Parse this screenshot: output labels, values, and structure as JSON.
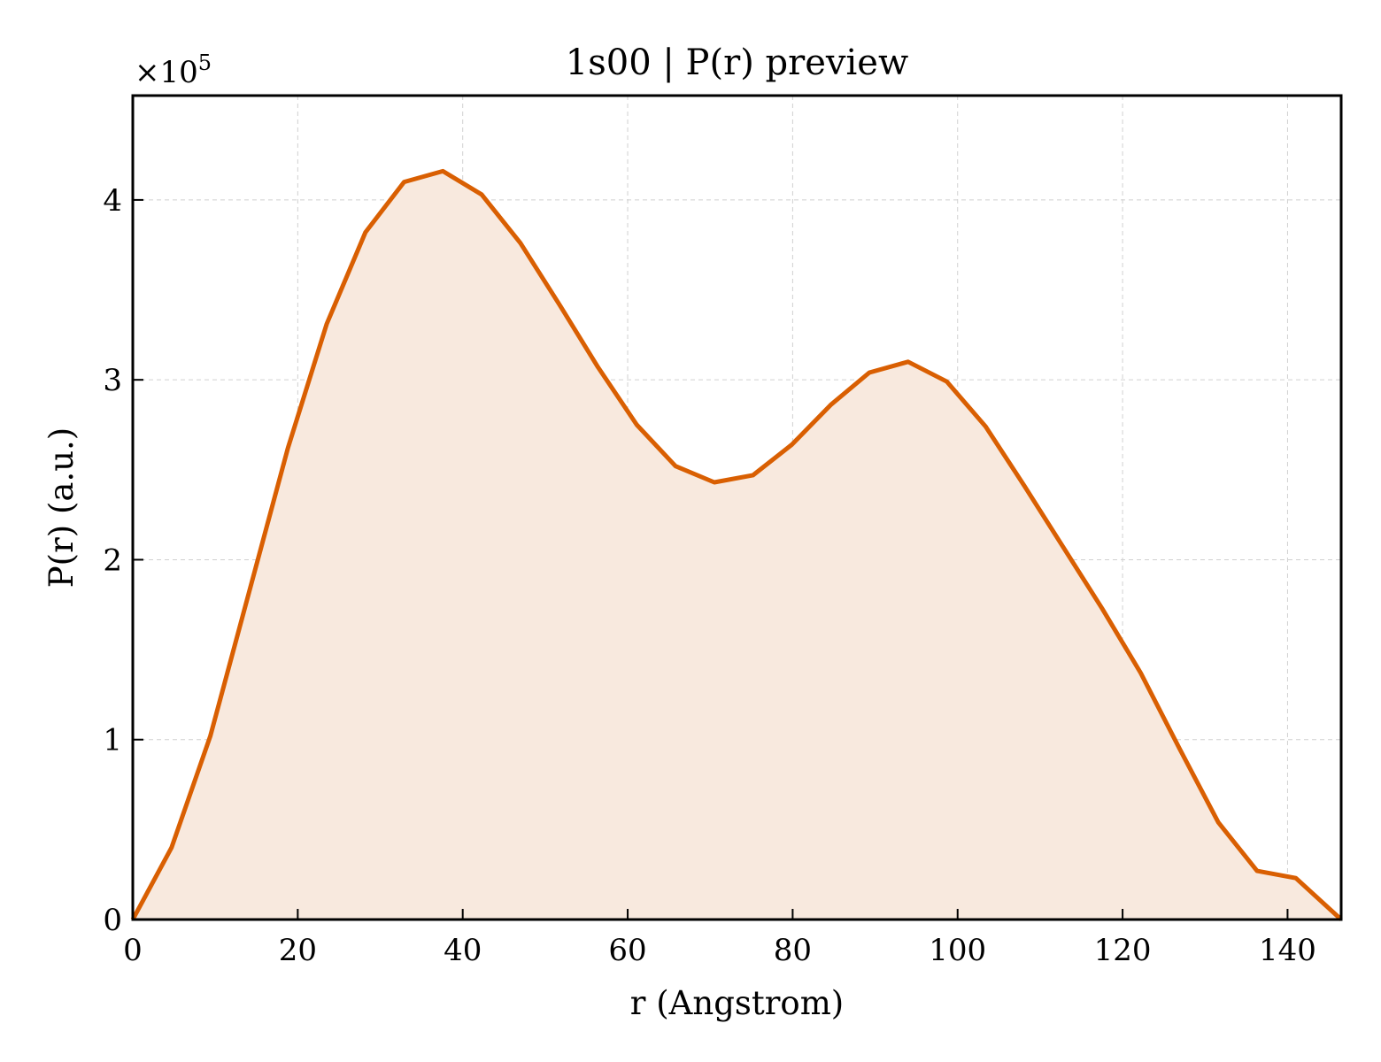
{
  "chart_data": {
    "type": "area",
    "title": "1s00 | P(r) preview",
    "xlabel": "r (Angstrom)",
    "ylabel": "P(r) (a.u.)",
    "y_scale_label": "×10",
    "y_scale_exponent": "5",
    "xlim": [
      0,
      146.5
    ],
    "ylim": [
      0,
      4.58
    ],
    "x_ticks": [
      0,
      20,
      40,
      60,
      80,
      100,
      120,
      140
    ],
    "x_tick_labels": [
      "0",
      "20",
      "40",
      "60",
      "80",
      "100",
      "120",
      "140"
    ],
    "y_ticks": [
      0,
      1,
      2,
      3,
      4
    ],
    "y_tick_labels": [
      "0",
      "1",
      "2",
      "3",
      "4"
    ],
    "grid": true,
    "series": [
      {
        "color": "#d95f02",
        "fill_color": "#f8e9de",
        "x": [
          0,
          4.7,
          9.4,
          14.1,
          18.8,
          23.5,
          28.2,
          32.9,
          37.6,
          42.3,
          47.0,
          51.7,
          56.4,
          61.1,
          65.8,
          70.5,
          75.2,
          79.9,
          84.6,
          89.3,
          94.0,
          98.7,
          103.4,
          108.1,
          112.8,
          117.5,
          122.2,
          126.9,
          131.6,
          136.3,
          141.0,
          146.5
        ],
        "values": [
          0.0,
          0.4,
          1.02,
          1.82,
          2.62,
          3.31,
          3.82,
          4.1,
          4.16,
          4.03,
          3.76,
          3.42,
          3.07,
          2.75,
          2.52,
          2.43,
          2.47,
          2.64,
          2.86,
          3.04,
          3.1,
          2.99,
          2.74,
          2.41,
          2.07,
          1.73,
          1.37,
          0.95,
          0.54,
          0.27,
          0.23,
          0.0
        ]
      }
    ]
  }
}
